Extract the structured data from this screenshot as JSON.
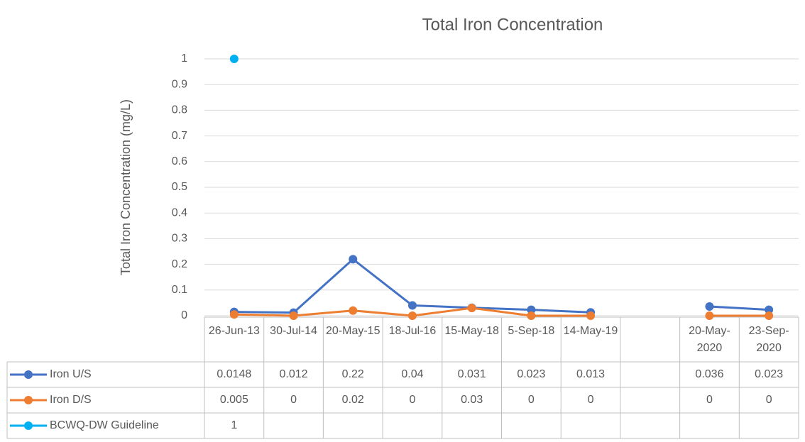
{
  "chart_data": {
    "type": "line",
    "title": "Total Iron Concentration",
    "y_label": "Total Iron Concentration (mg/L)",
    "categories": [
      "26-Jun-13",
      "30-Jul-14",
      "20-May-15",
      "18-Jul-16",
      "15-May-18",
      "5-Sep-18",
      "14-May-19",
      null,
      "20-May-2020",
      "23-Sep-2020"
    ],
    "series": [
      {
        "name": "Iron U/S",
        "color": "#4472c4",
        "values": [
          0.0148,
          0.012,
          0.22,
          0.04,
          0.031,
          0.023,
          0.013,
          null,
          0.036,
          0.023
        ]
      },
      {
        "name": "Iron D/S",
        "color": "#ed7d31",
        "values": [
          0.005,
          0,
          0.02,
          0,
          0.03,
          0,
          0,
          null,
          0,
          0
        ]
      },
      {
        "name": "BCWQ-DW Guideline",
        "color": "#00b0f0",
        "values": [
          1,
          null,
          null,
          null,
          null,
          null,
          null,
          null,
          null,
          null
        ]
      }
    ],
    "ylim": [
      0,
      1
    ],
    "yticks": [
      0,
      0.1,
      0.2,
      0.3,
      0.4,
      0.5,
      0.6,
      0.7,
      0.8,
      0.9,
      1
    ],
    "grid": true,
    "data_table": true
  }
}
